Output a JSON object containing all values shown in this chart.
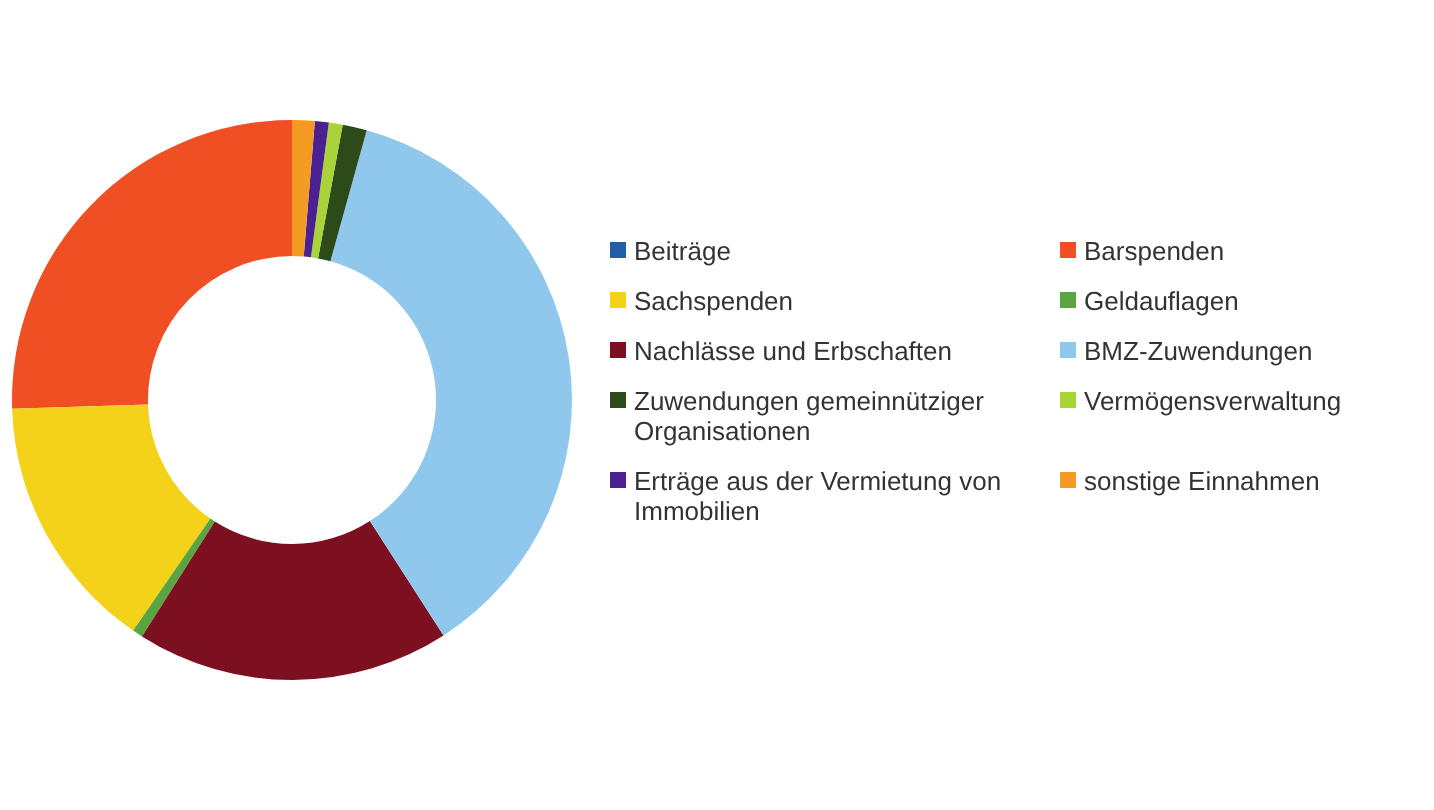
{
  "chart_data": {
    "type": "donut",
    "legend": "right",
    "categories": [
      "Beiträge",
      "Barspenden",
      "Sachspenden",
      "Geldauflagen",
      "Nachlässe und Erbschaften",
      "BMZ-Zuwendungen",
      "Zuwendungen gemeinnütziger Organisationen",
      "Vermögensverwaltung",
      "Erträge aus der Vermietung von Immobilien",
      "sonstige Einnahmen"
    ],
    "values": [
      0,
      25.5,
      14.9,
      0.6,
      18.1,
      36.6,
      1.4,
      0.8,
      0.8,
      1.3
    ],
    "colors": [
      "#1f5fa8",
      "#f04e23",
      "#f5d21a",
      "#5aa542",
      "#7d1020",
      "#8fc8ec",
      "#2d4a1a",
      "#a8d43a",
      "#4b2090",
      "#f59a23"
    ]
  }
}
